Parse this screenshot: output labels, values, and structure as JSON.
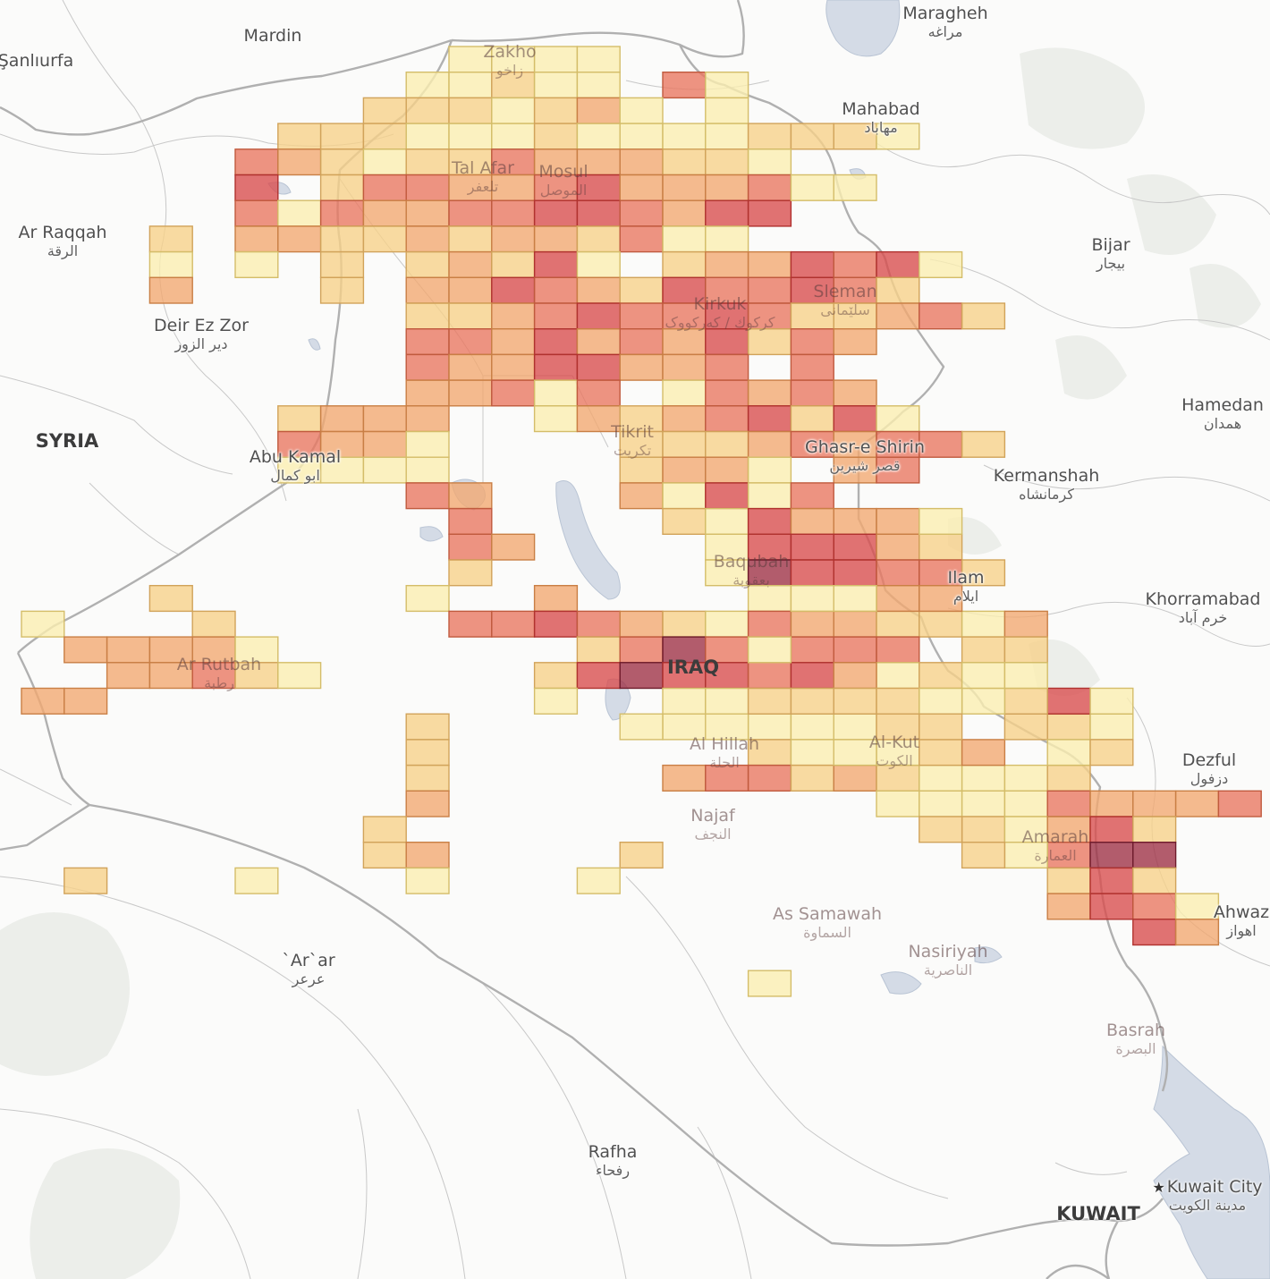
{
  "map": {
    "labels": [
      {
        "id": "sanliurfa",
        "en": "Şanlıurfa",
        "ar": ""
      },
      {
        "id": "mardin",
        "en": "Mardin",
        "ar": ""
      },
      {
        "id": "zakho",
        "en": "Zakho",
        "ar": "زاخو"
      },
      {
        "id": "maragheh",
        "en": "Maragheh",
        "ar": "مراغه"
      },
      {
        "id": "mahabad",
        "en": "Mahabad",
        "ar": "مهاباد"
      },
      {
        "id": "tal-afar",
        "en": "Tal Afar",
        "ar": "تلعفر"
      },
      {
        "id": "mosul",
        "en": "Mosul",
        "ar": "الموصل"
      },
      {
        "id": "ar-raqqah",
        "en": "Ar Raqqah",
        "ar": "الرقة"
      },
      {
        "id": "bijar",
        "en": "Bijar",
        "ar": "بیجار"
      },
      {
        "id": "sleman",
        "en": "Sleman",
        "ar": "سلێمانی"
      },
      {
        "id": "kirkuk",
        "en": "Kirkuk",
        "ar": "كركوك / کەرکووک"
      },
      {
        "id": "deir-ez-zor",
        "en": "Deir Ez Zor",
        "ar": "دير الزور"
      },
      {
        "id": "hamedan",
        "en": "Hamedan",
        "ar": "همدان"
      },
      {
        "id": "syria",
        "en": "SYRIA",
        "ar": ""
      },
      {
        "id": "tikrit",
        "en": "Tikrit",
        "ar": "تكريت"
      },
      {
        "id": "ghasr-e-shirin",
        "en": "Ghasr-e Shirin",
        "ar": "قصر شیرین"
      },
      {
        "id": "abu-kamal",
        "en": "Abu Kamal",
        "ar": "ابو كمال"
      },
      {
        "id": "kermanshah",
        "en": "Kermanshah",
        "ar": "کرمانشاه"
      },
      {
        "id": "baqubah",
        "en": "Baqubah",
        "ar": "بعقوبة"
      },
      {
        "id": "ilam",
        "en": "Ilam",
        "ar": "ایلام"
      },
      {
        "id": "khorramabad",
        "en": "Khorramabad",
        "ar": "خرم آباد"
      },
      {
        "id": "ar-rutbah",
        "en": "Ar Rutbah",
        "ar": "رطبة"
      },
      {
        "id": "iraq",
        "en": "IRAQ",
        "ar": ""
      },
      {
        "id": "al-hillah",
        "en": "Al Hillah",
        "ar": "الحلة"
      },
      {
        "id": "al-kut",
        "en": "Al-Kut",
        "ar": "الكوت"
      },
      {
        "id": "dezful",
        "en": "Dezful",
        "ar": "دزفول"
      },
      {
        "id": "najaf",
        "en": "Najaf",
        "ar": "النجف"
      },
      {
        "id": "amarah",
        "en": "Amarah",
        "ar": "العمارة"
      },
      {
        "id": "ahwaz",
        "en": "Ahwaz",
        "ar": "اهواز"
      },
      {
        "id": "as-samawah",
        "en": "As Samawah",
        "ar": "السماوة"
      },
      {
        "id": "arar",
        "en": "`Ar`ar",
        "ar": "عرعر"
      },
      {
        "id": "nasiriyah",
        "en": "Nasiriyah",
        "ar": "الناصرية"
      },
      {
        "id": "basrah",
        "en": "Basrah",
        "ar": "البصرة"
      },
      {
        "id": "rafha",
        "en": "Rafha",
        "ar": "رفحاء"
      },
      {
        "id": "kuwait-city",
        "en": "Kuwait City",
        "ar": "مدينة الكويت"
      },
      {
        "id": "kuwait",
        "en": "KUWAIT",
        "ar": ""
      }
    ],
    "heat_colors": [
      "#fbeeb0",
      "#f7d188",
      "#f2a86f",
      "#e9765f",
      "#d94b4b",
      "#9e2f44"
    ],
    "heat_strokes": [
      "#d4bd69",
      "#d1a35a",
      "#c97f45",
      "#c05a3e",
      "#b0322f",
      "#6e1c2c"
    ],
    "grid": {
      "rows_text": [
        "10|0000.",
        "9|00100.30",
        "8|1110120.0",
        "6|111000100001110",
        "5|3210113222110",
        "5|4.13322342223",
        "5|3032233443244",
        "3|1.221121221300",
        "3|0.0.1.12140.1224340",
        "3|2...1.224321433431",
        "9|11234334311231",
        "9|33242324132",
        "9|32244223.3",
        "9|22303.03232",
        "6|1222..021234140",
        "6|3220....111232331",
        "6|0000....1220.23",
        "9|32...20403",
        "10|3....104222",
        "10|32....044421",
        "10|1.....0544331",
        "3|1.....0..2....0.",
        "0|0...1.....33432103221102",
        "1|22220.......1353.333.11",
        "2|22310.....1454434.01",
        "0|22..........0",
        "9|1.......020",
        "9|1.......11",
        "9|1.....2334333131",
        "9|2..........3242333230",
        "8|1.............220",
        "8|12....1...",
        "1|1...0...0...0"
      ]
    },
    "extra_cells": [
      {
        "col": 14,
        "row": 11,
        "v": 2
      },
      {
        "col": 15,
        "row": 11,
        "v": 2
      },
      {
        "col": 16,
        "row": 11,
        "v": 2
      },
      {
        "col": 17,
        "row": 11,
        "v": 2
      },
      {
        "col": 13,
        "row": 10,
        "v": 2
      },
      {
        "col": 14,
        "row": 10,
        "v": 1
      },
      {
        "col": 16,
        "row": 5,
        "v": 0
      },
      {
        "col": 17,
        "row": 5,
        "v": 0
      },
      {
        "col": 18,
        "row": 5,
        "v": 0
      },
      {
        "col": 19,
        "row": 5,
        "v": 0
      },
      {
        "col": 15,
        "row": 25,
        "v": 0
      },
      {
        "col": 16,
        "row": 25,
        "v": 0
      },
      {
        "col": 18,
        "row": 26,
        "v": 0
      },
      {
        "col": 17,
        "row": 26,
        "v": 0
      },
      {
        "col": 16,
        "row": 26,
        "v": 0
      },
      {
        "col": 15,
        "row": 26,
        "v": 0
      },
      {
        "col": 14,
        "row": 26,
        "v": 0
      },
      {
        "col": 19,
        "row": 26,
        "v": 0
      },
      {
        "col": 20,
        "row": 27,
        "v": 0
      },
      {
        "col": 21,
        "row": 27,
        "v": 1
      },
      {
        "col": 22,
        "row": 27,
        "v": 2
      },
      {
        "col": 18,
        "row": 28,
        "v": 1
      },
      {
        "col": 19,
        "row": 28,
        "v": 2
      },
      {
        "col": 20,
        "row": 28,
        "v": 1
      },
      {
        "col": 21,
        "row": 28,
        "v": 0
      },
      {
        "col": 22,
        "row": 28,
        "v": 0
      },
      {
        "col": 23,
        "row": 28,
        "v": 0
      },
      {
        "col": 24,
        "row": 29,
        "v": 3
      },
      {
        "col": 25,
        "row": 29,
        "v": 2
      },
      {
        "col": 26,
        "row": 29,
        "v": 2
      },
      {
        "col": 27,
        "row": 29,
        "v": 2
      },
      {
        "col": 22,
        "row": 29,
        "v": 0
      },
      {
        "col": 23,
        "row": 29,
        "v": 0
      },
      {
        "col": 21,
        "row": 29,
        "v": 0
      },
      {
        "col": 20,
        "row": 29,
        "v": 0
      },
      {
        "col": 24,
        "row": 30,
        "v": 2
      },
      {
        "col": 25,
        "row": 30,
        "v": 4
      },
      {
        "col": 26,
        "row": 30,
        "v": 1
      },
      {
        "col": 23,
        "row": 30,
        "v": 0
      },
      {
        "col": 22,
        "row": 30,
        "v": 1
      },
      {
        "col": 21,
        "row": 30,
        "v": 1
      },
      {
        "col": 24,
        "row": 31,
        "v": 3
      },
      {
        "col": 25,
        "row": 31,
        "v": 5
      },
      {
        "col": 26,
        "row": 31,
        "v": 5
      },
      {
        "col": 23,
        "row": 31,
        "v": 0
      },
      {
        "col": 22,
        "row": 31,
        "v": 1
      },
      {
        "col": 24,
        "row": 32,
        "v": 1
      },
      {
        "col": 25,
        "row": 32,
        "v": 4
      },
      {
        "col": 26,
        "row": 32,
        "v": 1
      },
      {
        "col": 24,
        "row": 33,
        "v": 2
      },
      {
        "col": 25,
        "row": 33,
        "v": 4
      },
      {
        "col": 26,
        "row": 33,
        "v": 3
      },
      {
        "col": 27,
        "row": 33,
        "v": 0
      },
      {
        "col": 26,
        "row": 34,
        "v": 4
      },
      {
        "col": 27,
        "row": 34,
        "v": 2
      },
      {
        "col": 17,
        "row": 36,
        "v": 0
      },
      {
        "col": 24,
        "row": 26,
        "v": 1
      },
      {
        "col": 25,
        "row": 26,
        "v": 0
      },
      {
        "col": 23,
        "row": 26,
        "v": 1
      },
      {
        "col": 24,
        "row": 27,
        "v": 0
      },
      {
        "col": 25,
        "row": 27,
        "v": 1
      },
      {
        "col": 24,
        "row": 28,
        "v": 1
      },
      {
        "col": 24,
        "row": 25,
        "v": 4
      },
      {
        "col": 23,
        "row": 25,
        "v": 1
      },
      {
        "col": 25,
        "row": 25,
        "v": 0
      },
      {
        "col": 22,
        "row": 25,
        "v": 0
      },
      {
        "col": 19,
        "row": 24,
        "v": 2
      },
      {
        "col": 20,
        "row": 24,
        "v": 0
      },
      {
        "col": 21,
        "row": 24,
        "v": 0
      },
      {
        "col": 22,
        "row": 24,
        "v": 0
      },
      {
        "col": 23,
        "row": 24,
        "v": 0
      },
      {
        "col": 20,
        "row": 23,
        "v": 0
      },
      {
        "col": 20,
        "row": 22,
        "v": 2
      },
      {
        "col": 21,
        "row": 22,
        "v": 0
      },
      {
        "col": 22,
        "row": 22,
        "v": 0
      },
      {
        "col": 20,
        "row": 21,
        "v": 2
      },
      {
        "col": 21,
        "row": 21,
        "v": 2
      },
      {
        "col": 20,
        "row": 20,
        "v": 3
      },
      {
        "col": 21,
        "row": 20,
        "v": 1
      },
      {
        "col": 17,
        "row": 23,
        "v": 0
      },
      {
        "col": 18,
        "row": 23,
        "v": 0
      },
      {
        "col": 19,
        "row": 23,
        "v": 1
      },
      {
        "col": 17,
        "row": 21,
        "v": 1
      },
      {
        "col": 18,
        "row": 21,
        "v": 0
      },
      {
        "col": 19,
        "row": 21,
        "v": 0
      },
      {
        "col": 17,
        "row": 22,
        "v": 4
      },
      {
        "col": 18,
        "row": 22,
        "v": 2
      },
      {
        "col": 19,
        "row": 22,
        "v": 1
      },
      {
        "col": 17,
        "row": 20,
        "v": 3
      },
      {
        "col": 18,
        "row": 20,
        "v": 3
      },
      {
        "col": 19,
        "row": 20,
        "v": 1
      },
      {
        "col": 20,
        "row": 19,
        "v": 1
      },
      {
        "col": 21,
        "row": 19,
        "v": 1
      },
      {
        "col": 20,
        "row": 18,
        "v": 0
      },
      {
        "col": 21,
        "row": 18,
        "v": 0
      },
      {
        "col": 18,
        "row": 19,
        "v": 0
      },
      {
        "col": 19,
        "row": 19,
        "v": 0
      },
      {
        "col": 16,
        "row": 19,
        "v": 2
      },
      {
        "col": 17,
        "row": 19,
        "v": 2
      },
      {
        "col": 15,
        "row": 18,
        "v": 3
      },
      {
        "col": 16,
        "row": 18,
        "v": 3
      },
      {
        "col": 17,
        "row": 18,
        "v": 1
      },
      {
        "col": 16,
        "row": 24,
        "v": 0
      },
      {
        "col": 18,
        "row": 24,
        "v": 2
      },
      {
        "col": 17,
        "row": 24,
        "v": 2
      },
      {
        "col": 17,
        "row": 25,
        "v": 1
      },
      {
        "col": 18,
        "row": 25,
        "v": 1
      },
      {
        "col": 19,
        "row": 25,
        "v": 1
      },
      {
        "col": 20,
        "row": 25,
        "v": 1
      },
      {
        "col": 21,
        "row": 25,
        "v": 0
      },
      {
        "col": 20,
        "row": 26,
        "v": 1
      },
      {
        "col": 21,
        "row": 26,
        "v": 1
      },
      {
        "col": 18,
        "row": 27,
        "v": 0
      },
      {
        "col": 19,
        "row": 27,
        "v": 0
      }
    ]
  }
}
